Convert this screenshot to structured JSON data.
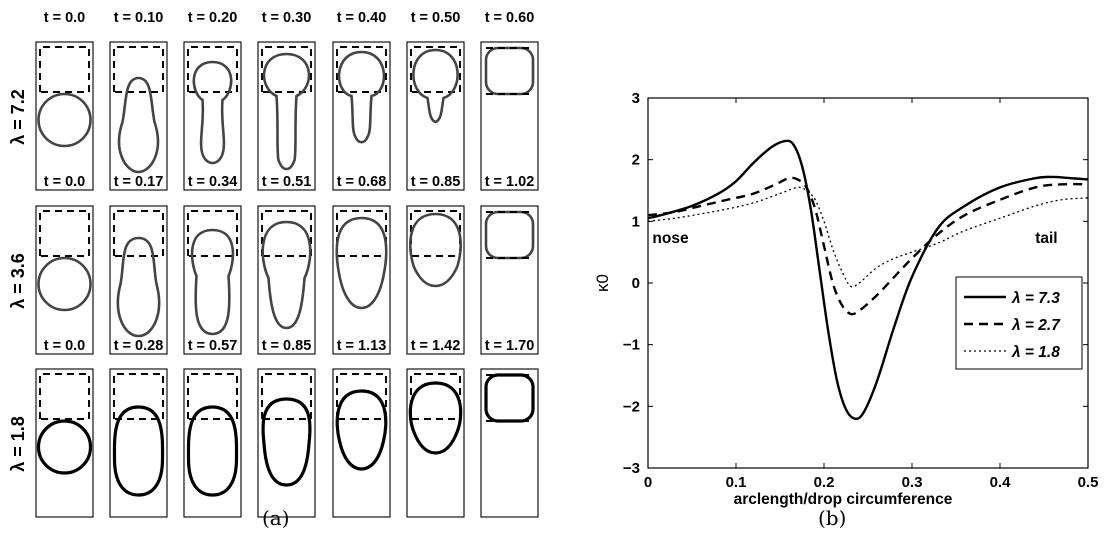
{
  "panel_a": {
    "caption": "(a)",
    "rows": [
      {
        "lambda_label": "λ = 7.2",
        "lambda": 7.2,
        "times": [
          "t = 0.0",
          "t = 0.10",
          "t = 0.20",
          "t = 0.30",
          "t = 0.40",
          "t = 0.50",
          "t = 0.60"
        ]
      },
      {
        "lambda_label": "λ = 3.6",
        "lambda": 3.6,
        "times": [
          "t = 0.0",
          "t = 0.17",
          "t = 0.34",
          "t = 0.51",
          "t = 0.68",
          "t = 0.85",
          "t = 1.02"
        ]
      },
      {
        "lambda_label": "λ = 1.8",
        "lambda": 1.8,
        "times": [
          "t = 0.0",
          "t = 0.28",
          "t = 0.57",
          "t = 0.85",
          "t = 1.13",
          "t = 1.42",
          "t = 1.70"
        ]
      }
    ]
  },
  "chart_data": {
    "type": "line",
    "caption": "(b)",
    "xlabel": "arclength/drop circumference",
    "ylabel": "κ0",
    "xlim": [
      0,
      0.5
    ],
    "ylim": [
      -3,
      3
    ],
    "xticks": [
      "0",
      "0.1",
      "0.2",
      "0.3",
      "0.4",
      "0.5"
    ],
    "yticks": [
      "3",
      "2",
      "1",
      "0",
      "−1",
      "−2",
      "−3"
    ],
    "grid": false,
    "legend_position": "center-right",
    "annotations": [
      {
        "text": "nose",
        "x": 0.005,
        "y": 0.65
      },
      {
        "text": "tail",
        "x": 0.44,
        "y": 0.65
      }
    ],
    "series": [
      {
        "name": "λ = 7.3",
        "style": "solid",
        "x": [
          0,
          0.02,
          0.05,
          0.08,
          0.1,
          0.12,
          0.14,
          0.155,
          0.165,
          0.175,
          0.185,
          0.195,
          0.205,
          0.215,
          0.225,
          0.235,
          0.245,
          0.26,
          0.28,
          0.3,
          0.33,
          0.36,
          0.4,
          0.44,
          0.46,
          0.48,
          0.5
        ],
        "y": [
          1.05,
          1.12,
          1.25,
          1.45,
          1.65,
          1.95,
          2.2,
          2.3,
          2.25,
          1.9,
          1.2,
          0.2,
          -0.8,
          -1.6,
          -2.05,
          -2.2,
          -2.1,
          -1.6,
          -0.7,
          0.1,
          0.9,
          1.25,
          1.55,
          1.7,
          1.72,
          1.7,
          1.68
        ]
      },
      {
        "name": "λ = 2.7",
        "style": "dashed",
        "x": [
          0,
          0.03,
          0.06,
          0.09,
          0.12,
          0.145,
          0.16,
          0.17,
          0.18,
          0.19,
          0.2,
          0.21,
          0.22,
          0.23,
          0.24,
          0.26,
          0.28,
          0.3,
          0.33,
          0.36,
          0.4,
          0.44,
          0.47,
          0.5
        ],
        "y": [
          1.1,
          1.15,
          1.25,
          1.35,
          1.45,
          1.6,
          1.7,
          1.68,
          1.55,
          1.2,
          0.6,
          0.0,
          -0.35,
          -0.5,
          -0.45,
          -0.2,
          0.1,
          0.4,
          0.8,
          1.1,
          1.35,
          1.55,
          1.6,
          1.6
        ]
      },
      {
        "name": "λ = 1.8",
        "style": "dotted",
        "x": [
          0,
          0.03,
          0.06,
          0.09,
          0.12,
          0.15,
          0.17,
          0.18,
          0.19,
          0.2,
          0.21,
          0.22,
          0.23,
          0.24,
          0.26,
          0.28,
          0.3,
          0.33,
          0.36,
          0.4,
          0.44,
          0.47,
          0.5
        ],
        "y": [
          1.0,
          1.05,
          1.12,
          1.2,
          1.3,
          1.45,
          1.55,
          1.5,
          1.35,
          1.0,
          0.55,
          0.2,
          -0.05,
          0.0,
          0.25,
          0.4,
          0.5,
          0.65,
          0.85,
          1.05,
          1.25,
          1.35,
          1.38
        ]
      }
    ]
  }
}
